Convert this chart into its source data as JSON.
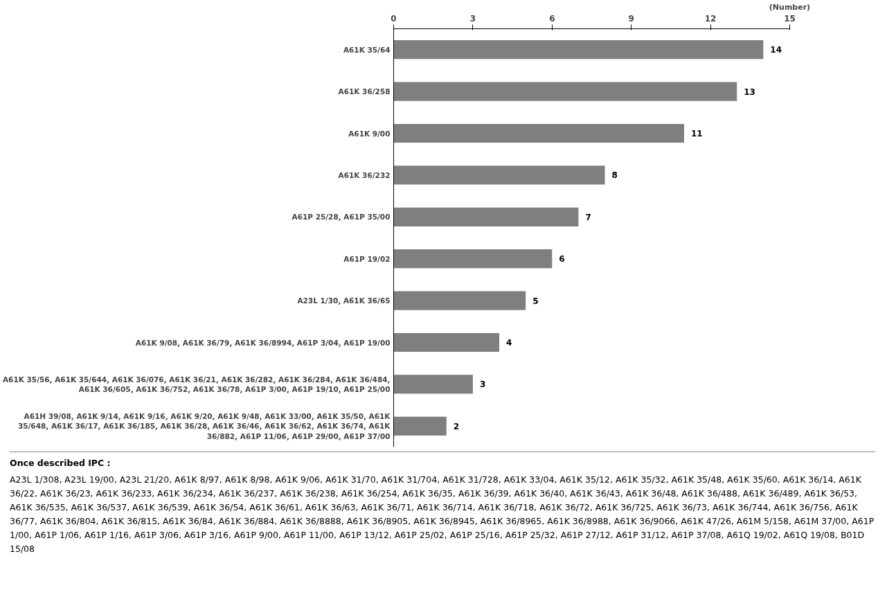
{
  "chart_data": {
    "type": "bar",
    "orientation": "horizontal",
    "xlabel": "(Number)",
    "categories": [
      "A61K 35/64",
      "A61K 36/258",
      "A61K 9/00",
      "A61K 36/232",
      "A61P 25/28, A61P 35/00",
      "A61P 19/02",
      "A23L 1/30, A61K 36/65",
      "A61K 9/08, A61K 36/79, A61K 36/8994, A61P 3/04, A61P 19/00",
      "A61K 35/56, A61K 35/644, A61K 36/076, A61K 36/21, A61K 36/282, A61K 36/284, A61K 36/484, A61K 36/605, A61K 36/752, A61K 36/78, A61P 3/00, A61P 19/10, A61P 25/00",
      "A61H 39/08, A61K 9/14, A61K 9/16, A61K 9/20, A61K 9/48, A61K 33/00, A61K 35/50, A61K 35/648, A61K 36/17, A61K 36/185, A61K 36/28, A61K 36/46, A61K 36/62, A61K 36/74, A61K 36/882, A61P 11/06, A61P 29/00, A61P 37/00"
    ],
    "values": [
      14,
      13,
      11,
      8,
      7,
      6,
      5,
      4,
      3,
      2
    ],
    "color": "#7f7f7f",
    "data_labels": true,
    "xlim": [
      0,
      15
    ],
    "xticks": [
      0,
      3,
      6,
      9,
      12,
      15
    ],
    "grid": false,
    "annotations": [
      "Once described IPC :",
      "A23L 1/308, A23L 19/00, A23L 21/20, A61K 8/97, A61K 8/98, A61K 9/06, A61K 31/70, A61K 31/704, A61K 31/728, A61K 33/04, A61K 35/12, A61K 35/32, A61K 35/48, A61K 35/60, A61K 36/14, A61K 36/22, A61K 36/23, A61K 36/233, A61K 36/234, A61K 36/237, A61K 36/238, A61K 36/254, A61K 36/35, A61K 36/39, A61K 36/40, A61K 36/43, A61K 36/48, A61K 36/488, A61K 36/489, A61K 36/53, A61K 36/535, A61K 36/537, A61K 36/539, A61K 36/54, A61K 36/61, A61K 36/63, A61K 36/71, A61K 36/714, A61K 36/718, A61K 36/72, A61K 36/725, A61K 36/73, A61K 36/744, A61K 36/756, A61K 36/77, A61K 36/804, A61K 36/815, A61K 36/84, A61K 36/884, A61K 36/8888, A61K 36/8905, A61K 36/8945, A61K 36/8965, A61K 36/8988, A61K 36/9066, A61K 47/26, A61M 5/158, A61M 37/00, A61P 1/00, A61P 1/06, A61P 1/16, A61P 3/06, A61P 3/16, A61P 9/00, A61P 11/00, A61P 13/12, A61P 25/02, A61P 25/16, A61P 25/32, A61P 27/12, A61P 31/12, A61P 37/08, A61Q 19/02, A61Q 19/08, B01D 15/08"
    ]
  }
}
